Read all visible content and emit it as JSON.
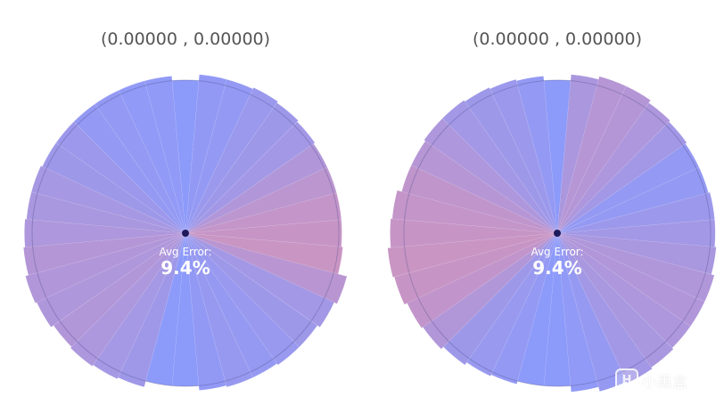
{
  "chart_data": [
    {
      "type": "polar-bar",
      "title": "(0.00000 , 0.00000)",
      "center_label": "Avg Error:",
      "center_value": "9.4%",
      "start_angle_deg": 90,
      "direction": "counterclockwise",
      "reference_radius": 1.0,
      "color_low": "#7f8ffa",
      "color_high": "#f58590",
      "values": [
        1.0,
        1.03,
        1.03,
        1.03,
        1.03,
        1.03,
        1.03,
        1.04,
        1.04,
        1.05,
        1.06,
        1.08,
        1.07,
        1.05,
        1.06,
        1.05,
        1.04,
        1.0,
        1.0,
        1.03,
        1.04,
        1.04,
        1.05,
        1.05,
        1.07,
        1.09,
        1.03,
        1.02,
        1.02,
        1.02,
        1.02,
        1.03,
        1.04,
        1.05,
        1.04,
        1.04
      ],
      "errors": [
        0.0,
        0.05,
        0.05,
        0.08,
        0.08,
        0.16,
        0.18,
        0.25,
        0.28,
        0.32,
        0.38,
        0.35,
        0.33,
        0.36,
        0.31,
        0.24,
        0.19,
        0.0,
        0.0,
        0.06,
        0.11,
        0.09,
        0.12,
        0.18,
        0.22,
        0.42,
        0.58,
        0.55,
        0.52,
        0.45,
        0.35,
        0.22,
        0.18,
        0.14,
        0.08,
        0.06
      ]
    },
    {
      "type": "polar-bar",
      "title": "(0.00000 , 0.00000)",
      "center_label": "Avg Error:",
      "center_value": "9.4%",
      "start_angle_deg": 90,
      "direction": "counterclockwise",
      "reference_radius": 1.0,
      "color_low": "#7f8ffa",
      "color_high": "#f58590",
      "values": [
        1.0,
        1.03,
        1.04,
        1.05,
        1.06,
        1.06,
        1.05,
        1.05,
        1.08,
        1.09,
        1.11,
        1.1,
        1.08,
        1.07,
        1.05,
        1.03,
        1.02,
        1.0,
        1.0,
        1.04,
        1.07,
        1.08,
        1.07,
        1.06,
        1.06,
        1.06,
        1.04,
        1.03,
        1.03,
        1.02,
        1.02,
        1.03,
        1.04,
        1.06,
        1.06,
        1.04
      ],
      "errors": [
        0.0,
        0.08,
        0.15,
        0.18,
        0.22,
        0.32,
        0.4,
        0.48,
        0.52,
        0.55,
        0.58,
        0.56,
        0.5,
        0.36,
        0.18,
        0.12,
        0.08,
        0.0,
        0.0,
        0.05,
        0.1,
        0.22,
        0.28,
        0.32,
        0.35,
        0.34,
        0.28,
        0.22,
        0.15,
        0.08,
        0.08,
        0.22,
        0.32,
        0.38,
        0.4,
        0.3
      ]
    }
  ],
  "watermark": {
    "logo": "H",
    "text": "小黑盒"
  }
}
